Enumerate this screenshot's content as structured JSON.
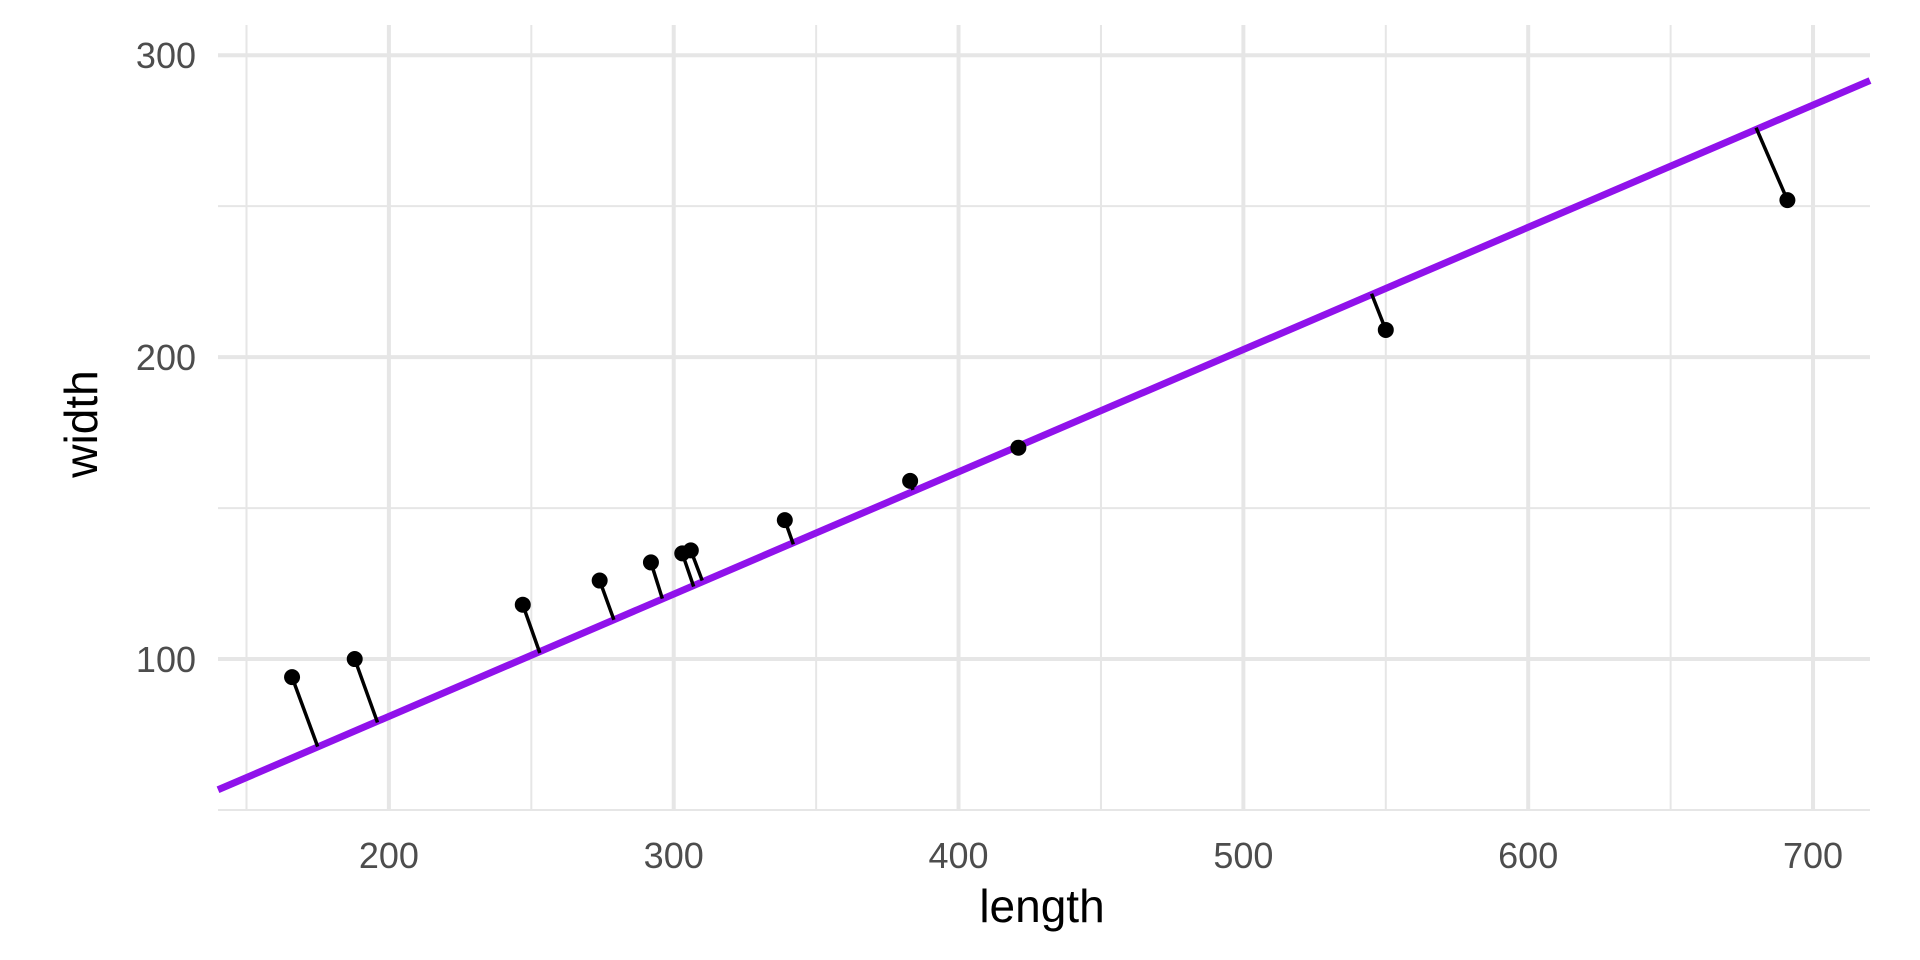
{
  "chart_data": {
    "type": "scatter",
    "xlabel": "length",
    "ylabel": "width",
    "xlim": [
      140,
      720
    ],
    "ylim": [
      50,
      310
    ],
    "x_major_ticks": [
      200,
      300,
      400,
      500,
      600,
      700
    ],
    "x_minor_ticks": [
      150,
      250,
      350,
      450,
      550,
      650
    ],
    "y_major_ticks": [
      100,
      200,
      300
    ],
    "y_minor_ticks": [
      50,
      150,
      250
    ],
    "x_tick_labels": [
      "200",
      "300",
      "400",
      "500",
      "600",
      "700"
    ],
    "y_tick_labels": [
      "100",
      "200",
      "300"
    ],
    "grid": true,
    "fit_line": {
      "slope": 0.405,
      "intercept": 0.0,
      "color": "#9012EB",
      "x_range": [
        140,
        720
      ]
    },
    "points": [
      {
        "x": 166,
        "y": 94,
        "xf": 175,
        "yf": 71
      },
      {
        "x": 188,
        "y": 100,
        "xf": 196,
        "yf": 79
      },
      {
        "x": 247,
        "y": 118,
        "xf": 253,
        "yf": 102
      },
      {
        "x": 274,
        "y": 126,
        "xf": 279,
        "yf": 113
      },
      {
        "x": 292,
        "y": 132,
        "xf": 296,
        "yf": 120
      },
      {
        "x": 303,
        "y": 135,
        "xf": 307,
        "yf": 124
      },
      {
        "x": 306,
        "y": 136,
        "xf": 310,
        "yf": 126
      },
      {
        "x": 339,
        "y": 146,
        "xf": 342,
        "yf": 138
      },
      {
        "x": 383,
        "y": 159,
        "xf": 384,
        "yf": 156
      },
      {
        "x": 421,
        "y": 170,
        "xf": 421,
        "yf": 171
      },
      {
        "x": 550,
        "y": 209,
        "xf": 545,
        "yf": 221
      },
      {
        "x": 691,
        "y": 252,
        "xf": 680,
        "yf": 276
      }
    ],
    "colors": {
      "point": "#000000",
      "segment": "#000000",
      "grid": "#e6e6e6"
    }
  }
}
